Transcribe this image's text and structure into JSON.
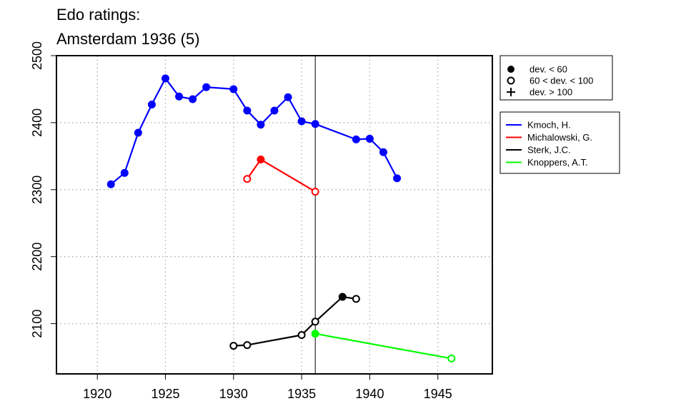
{
  "chart_data": {
    "type": "line",
    "title": "Edo ratings:",
    "subtitle": "Amsterdam 1936 (5)",
    "xlabel": "",
    "ylabel": "",
    "xlim": [
      1917,
      1949
    ],
    "ylim": [
      2025,
      2500
    ],
    "x_ticks": [
      1920,
      1925,
      1930,
      1935,
      1940,
      1945
    ],
    "y_ticks": [
      2100,
      2200,
      2300,
      2400,
      2500
    ],
    "x_grid": [
      1920,
      1925,
      1930,
      1935,
      1940,
      1945
    ],
    "y_grid": [
      2100,
      2200,
      2300,
      2400
    ],
    "grid": true,
    "reference_line_x": 1936,
    "marker_legend": [
      {
        "symbol": "filled-circle",
        "label": "dev. < 60"
      },
      {
        "symbol": "open-circle",
        "label": "60 < dev. < 100"
      },
      {
        "symbol": "plus",
        "label": "dev. > 100"
      }
    ],
    "legend_position": "right",
    "series": [
      {
        "name": "Kmoch, H.",
        "color": "#0000ff",
        "points": [
          {
            "x": 1921,
            "y": 2308,
            "marker": "filled"
          },
          {
            "x": 1922,
            "y": 2325,
            "marker": "filled"
          },
          {
            "x": 1923,
            "y": 2385,
            "marker": "filled"
          },
          {
            "x": 1924,
            "y": 2427,
            "marker": "filled"
          },
          {
            "x": 1925,
            "y": 2466,
            "marker": "filled"
          },
          {
            "x": 1926,
            "y": 2439,
            "marker": "filled"
          },
          {
            "x": 1927,
            "y": 2435,
            "marker": "filled"
          },
          {
            "x": 1928,
            "y": 2453,
            "marker": "filled"
          },
          {
            "x": 1930,
            "y": 2450,
            "marker": "filled"
          },
          {
            "x": 1931,
            "y": 2418,
            "marker": "filled"
          },
          {
            "x": 1932,
            "y": 2397,
            "marker": "filled"
          },
          {
            "x": 1933,
            "y": 2418,
            "marker": "filled"
          },
          {
            "x": 1934,
            "y": 2438,
            "marker": "filled"
          },
          {
            "x": 1935,
            "y": 2402,
            "marker": "filled"
          },
          {
            "x": 1936,
            "y": 2398,
            "marker": "filled"
          },
          {
            "x": 1939,
            "y": 2375,
            "marker": "filled"
          },
          {
            "x": 1940,
            "y": 2376,
            "marker": "filled"
          },
          {
            "x": 1941,
            "y": 2356,
            "marker": "filled"
          },
          {
            "x": 1942,
            "y": 2317,
            "marker": "filled"
          }
        ]
      },
      {
        "name": "Michalowski, G.",
        "color": "#ff0000",
        "points": [
          {
            "x": 1931,
            "y": 2316,
            "marker": "open"
          },
          {
            "x": 1932,
            "y": 2345,
            "marker": "filled"
          },
          {
            "x": 1936,
            "y": 2297,
            "marker": "open"
          }
        ]
      },
      {
        "name": "Sterk, J.C.",
        "color": "#000000",
        "points": [
          {
            "x": 1930,
            "y": 2067,
            "marker": "open"
          },
          {
            "x": 1931,
            "y": 2068,
            "marker": "open"
          },
          {
            "x": 1935,
            "y": 2083,
            "marker": "open"
          },
          {
            "x": 1936,
            "y": 2103,
            "marker": "open"
          },
          {
            "x": 1938,
            "y": 2140,
            "marker": "filled"
          },
          {
            "x": 1939,
            "y": 2137,
            "marker": "open"
          }
        ]
      },
      {
        "name": "Knoppers, A.T.",
        "color": "#00ff00",
        "points": [
          {
            "x": 1936,
            "y": 2085,
            "marker": "filled"
          },
          {
            "x": 1946,
            "y": 2048,
            "marker": "open"
          }
        ]
      }
    ]
  }
}
